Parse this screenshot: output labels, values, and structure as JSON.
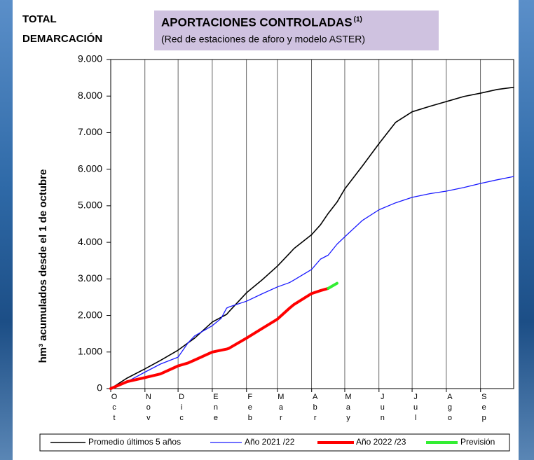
{
  "chart_data": {
    "type": "line",
    "corner_title": [
      "TOTAL",
      "DEMARCACIÓN"
    ],
    "title": "APORTACIONES CONTROLADAS",
    "title_note": "(1)",
    "subtitle": "(Red de estaciones de aforo y modelo ASTER)",
    "y_label": "hm³ acumulados desde el 1 de octubre",
    "grid": "x",
    "xlim": [
      0,
      365
    ],
    "xticks": [
      {
        "value": 0,
        "label": "Oct"
      },
      {
        "value": 31,
        "label": "Nov"
      },
      {
        "value": 61,
        "label": "Dic"
      },
      {
        "value": 92,
        "label": "Ene"
      },
      {
        "value": 123,
        "label": "Feb"
      },
      {
        "value": 151,
        "label": "Mar"
      },
      {
        "value": 182,
        "label": "Abr"
      },
      {
        "value": 212,
        "label": "May"
      },
      {
        "value": 243,
        "label": "Jun"
      },
      {
        "value": 273,
        "label": "Jul"
      },
      {
        "value": 304,
        "label": "Ago"
      },
      {
        "value": 335,
        "label": "Sep"
      }
    ],
    "ylim": [
      0,
      9000
    ],
    "yticks": [
      0,
      {
        "value": 1000,
        "label": "1.000"
      },
      {
        "value": 2000,
        "label": "2.000"
      },
      {
        "value": 3000,
        "label": "3.000"
      },
      {
        "value": 4000,
        "label": "4.000"
      },
      {
        "value": 5000,
        "label": "5.000"
      },
      {
        "value": 6000,
        "label": "6.000"
      },
      {
        "value": 7000,
        "label": "7.000"
      },
      {
        "value": 8000,
        "label": "8.000"
      },
      {
        "value": 9000,
        "label": "9.000"
      }
    ],
    "x": [
      0,
      15,
      31,
      45,
      61,
      70,
      76,
      92,
      100,
      105,
      107,
      123,
      137,
      151,
      162,
      166,
      182,
      190,
      197,
      205,
      212,
      228,
      243,
      258,
      273,
      289,
      304,
      320,
      335,
      350,
      365
    ],
    "series": [
      {
        "name": "Promedio últimos 5 años",
        "color": "#000000",
        "width": 1.6,
        "values": [
          0,
          290,
          540,
          770,
          1050,
          1250,
          1380,
          1820,
          1950,
          2030,
          2100,
          2620,
          2970,
          3350,
          3700,
          3830,
          4210,
          4480,
          4790,
          5100,
          5460,
          6090,
          6700,
          7280,
          7570,
          7720,
          7850,
          7990,
          8080,
          8180,
          8240
        ]
      },
      {
        "name": "Año 2021 /22",
        "color": "#1a1aff",
        "width": 1.3,
        "values": [
          0,
          190,
          450,
          670,
          860,
          1250,
          1440,
          1720,
          1920,
          2200,
          2230,
          2390,
          2590,
          2780,
          2900,
          2970,
          3260,
          3540,
          3650,
          3950,
          4150,
          4600,
          4890,
          5080,
          5230,
          5330,
          5400,
          5500,
          5610,
          5710,
          5800
        ]
      },
      {
        "name": "Año 2022 /23",
        "color": "#ff0000",
        "width": 4,
        "values": [
          0,
          190,
          300,
          400,
          620,
          700,
          780,
          1000,
          1050,
          1080,
          1100,
          1380,
          1640,
          1900,
          2200,
          2300,
          2600,
          2680,
          2740,
          null,
          null,
          null,
          null,
          null,
          null,
          null,
          null,
          null,
          null,
          null,
          null
        ]
      },
      {
        "name": "Previsión",
        "color": "#33ee33",
        "width": 4,
        "values": [
          null,
          null,
          null,
          null,
          null,
          null,
          null,
          null,
          null,
          null,
          null,
          null,
          null,
          null,
          null,
          null,
          null,
          null,
          2740,
          2880,
          null,
          null,
          null,
          null,
          null,
          null,
          null,
          null,
          null,
          null,
          null
        ]
      }
    ]
  }
}
